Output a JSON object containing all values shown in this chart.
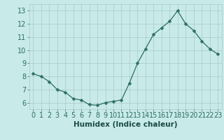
{
  "x": [
    0,
    1,
    2,
    3,
    4,
    5,
    6,
    7,
    8,
    9,
    10,
    11,
    12,
    13,
    14,
    15,
    16,
    17,
    18,
    19,
    20,
    21,
    22,
    23
  ],
  "y": [
    8.2,
    8.0,
    7.6,
    7.0,
    6.8,
    6.3,
    6.2,
    5.85,
    5.8,
    6.0,
    6.1,
    6.2,
    7.5,
    9.0,
    10.1,
    11.2,
    11.7,
    12.2,
    13.0,
    12.0,
    11.5,
    10.7,
    10.1,
    9.7
  ],
  "line_color": "#2d6e65",
  "marker": "D",
  "marker_size": 2.5,
  "bg_color": "#c8eae8",
  "grid_color": "#a8cac8",
  "grid_minor_color": "#b8d8d5",
  "xlabel": "Humidex (Indice chaleur)",
  "ylim": [
    5.5,
    13.5
  ],
  "xlim": [
    -0.5,
    23.5
  ],
  "yticks": [
    6,
    7,
    8,
    9,
    10,
    11,
    12,
    13
  ],
  "xticks": [
    0,
    1,
    2,
    3,
    4,
    5,
    6,
    7,
    8,
    9,
    10,
    11,
    12,
    13,
    14,
    15,
    16,
    17,
    18,
    19,
    20,
    21,
    22,
    23
  ],
  "tick_color": "#2d6e65",
  "label_color": "#1a4a45",
  "xlabel_fontsize": 7.5,
  "tick_fontsize": 7
}
